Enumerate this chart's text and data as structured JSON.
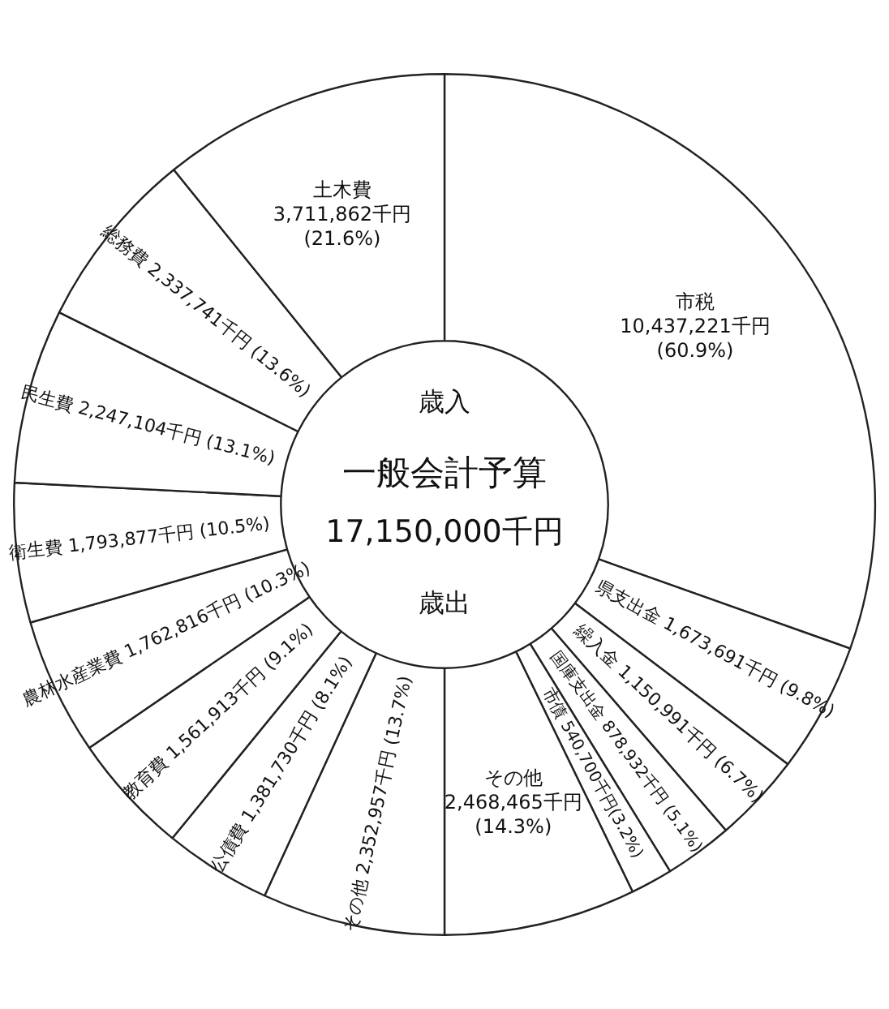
{
  "chart_data": {
    "type": "donut",
    "categories": [
      "市税",
      "県支出金",
      "繰入金",
      "国庫支出金",
      "市債",
      "その他",
      "その他",
      "公債費",
      "教育費",
      "農林水産業費",
      "衛生費",
      "民生費",
      "総務費",
      "土木費"
    ],
    "values": [
      10437221,
      1673691,
      1150991,
      878932,
      540700,
      2468465,
      2352957,
      1381730,
      1561913,
      1762816,
      1793877,
      2247104,
      2337741,
      3711862
    ],
    "value_labels": [
      "10,437,221千円 (60.9%)",
      "1,673,691千円 (9.8%)",
      "1,150,991千円 (6.7%)",
      "878,932千円 (5.1%)",
      "540,700千円(3.2%)",
      "2,468,465千円 (14.3%)",
      "2,352,957千円 (13.7%)",
      "1,381,730千円 (8.1%)",
      "1,561,913千円 (9.1%)",
      "1,762,816千円 (10.3%)",
      "1,793,877千円 (10.5%)",
      "2,247,104千円 (13.1%)",
      "2,337,741千円 (13.6%)",
      "3,711,862千円 (21.6%)"
    ],
    "colors": [
      "#ffffff",
      "#ffffff",
      "#ffffff",
      "#ffffff",
      "#ffffff",
      "#ffffff",
      "#ffffff",
      "#ffffff",
      "#ffffff",
      "#ffffff",
      "#ffffff",
      "#ffffff",
      "#ffffff",
      "#ffffff"
    ],
    "annotations": [
      "歳入",
      "一般会計予算",
      "17,150,000千円",
      "歳出"
    ],
    "legend": false
  }
}
